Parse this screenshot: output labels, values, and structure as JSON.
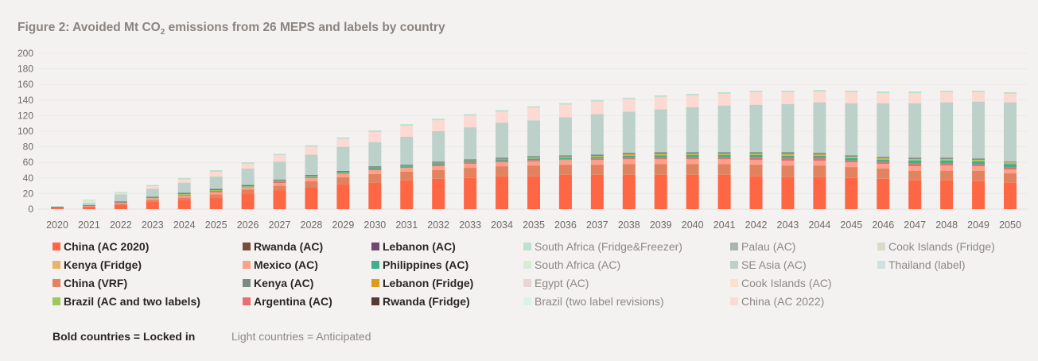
{
  "chart_data": {
    "type": "bar",
    "stacked": true,
    "title": "Figure 2: Avoided Mt CO",
    "title_sub": "2",
    "title_rest": " emissions from 26 MEPS and labels by country",
    "ylim": [
      0,
      200
    ],
    "yticks": [
      0,
      20,
      40,
      60,
      80,
      100,
      120,
      140,
      160,
      180,
      200
    ],
    "grid": true,
    "legend_placement": "bottom",
    "categories": [
      "2020",
      "2021",
      "2022",
      "2023",
      "2024",
      "2025",
      "2026",
      "2027",
      "2028",
      "2029",
      "2030",
      "2031",
      "2032",
      "2033",
      "2034",
      "2035",
      "2036",
      "2037",
      "2038",
      "2039",
      "2040",
      "2041",
      "2042",
      "2043",
      "2044",
      "2045",
      "2046",
      "2047",
      "2048",
      "2049",
      "2050"
    ],
    "series": [
      {
        "name": "China (AC 2020)",
        "color": "#ff6644",
        "status": "locked",
        "values": [
          1,
          3,
          6,
          10,
          12,
          15,
          20,
          24,
          28,
          32,
          34,
          37,
          39,
          40,
          42,
          42,
          44,
          44,
          44,
          44,
          44,
          44,
          42,
          41,
          41,
          40,
          39,
          37,
          37,
          36,
          34
        ]
      },
      {
        "name": "China (VRF)",
        "color": "#e3825f",
        "status": "locked",
        "values": [
          0,
          0.5,
          1,
          2,
          3,
          4,
          5,
          6,
          8,
          9,
          11,
          11,
          11,
          13,
          13,
          14,
          13,
          13,
          14,
          14,
          14,
          14,
          15,
          15,
          15,
          14,
          13,
          12,
          12,
          13,
          12
        ]
      },
      {
        "name": "Mexico (AC)",
        "color": "#ffa08a",
        "status": "locked",
        "values": [
          0,
          0.5,
          1,
          1.5,
          2,
          2.5,
          3,
          3.5,
          4,
          4.5,
          5,
          5,
          5,
          5,
          5,
          5,
          6,
          6,
          6,
          6,
          6,
          6,
          6,
          6,
          6,
          6,
          6,
          6,
          7,
          6,
          5
        ]
      },
      {
        "name": "Argentina (AC)",
        "color": "#e87070",
        "status": "locked",
        "values": [
          1,
          0,
          0.5,
          0.5,
          1,
          1.5,
          0.5,
          1.5,
          1,
          0.5,
          1.5,
          0.5,
          2,
          2,
          2,
          2,
          1,
          2,
          2,
          2,
          2.5,
          2.5,
          3.5,
          3.5,
          3.5,
          2.5,
          2.5,
          3.5,
          2.5,
          2.5,
          3
        ]
      },
      {
        "name": "Philippines (AC)",
        "color": "#3fae8c",
        "status": "locked",
        "values": [
          0,
          0,
          0,
          0,
          0.5,
          0.5,
          0.5,
          1,
          1,
          1,
          1.5,
          1.5,
          2,
          2,
          2,
          2,
          2,
          2,
          2.5,
          3,
          3,
          3,
          3,
          3,
          3,
          3,
          3,
          4,
          4,
          4,
          4
        ]
      },
      {
        "name": "Brazil (AC and two labels)",
        "color": "#9bc95b",
        "status": "locked",
        "values": [
          0,
          0,
          0,
          0.5,
          1,
          1,
          0.5,
          0.5,
          0.5,
          0.5,
          0.5,
          0.5,
          0.5,
          0.5,
          0.5,
          1,
          1,
          1,
          1,
          1,
          1,
          1,
          1,
          1.5,
          1,
          1.5,
          1.5,
          1.5,
          1.5,
          1.5,
          1.5
        ]
      },
      {
        "name": "Lebanon (Fridge)",
        "color": "#e09a1a",
        "status": "locked",
        "values": [
          0,
          0,
          0,
          0,
          0,
          0,
          0,
          0,
          0,
          0,
          0,
          0,
          0,
          0,
          0,
          0.5,
          0.5,
          0.5,
          1,
          1.5,
          1,
          1,
          1,
          1.5,
          1,
          0.5,
          0.5,
          0.5,
          0.5,
          0.5,
          0.5
        ]
      },
      {
        "name": "Kenya (AC)",
        "color": "#6f7f7a",
        "status": "locked",
        "values": [
          1,
          1,
          1.5,
          1.5,
          1.5,
          1.5,
          1.5,
          1.5,
          1.5,
          1.5,
          1.5,
          1.5,
          1.5,
          1.5,
          1.5,
          1.5,
          1.5,
          1.5,
          1.5,
          1.5,
          1.5,
          1.5,
          1.5,
          1.5,
          1.5,
          1.5,
          1.5,
          1.5,
          1.5,
          1.5,
          1
        ]
      },
      {
        "name": "SE Asia (AC)",
        "color": "#bcd1ca",
        "status": "anticipated",
        "values": [
          0.5,
          3,
          9,
          10,
          13,
          16,
          21,
          23,
          26,
          31,
          31,
          36,
          39,
          41,
          45,
          46,
          49,
          52,
          53,
          55,
          58,
          60,
          61,
          62,
          65,
          67,
          69,
          70,
          71,
          73,
          76
        ]
      },
      {
        "name": "China (AC 2022)",
        "color": "#fcdad3",
        "status": "anticipated",
        "values": [
          0,
          0,
          1.5,
          3.5,
          4,
          6,
          6,
          8,
          10,
          10,
          13,
          14,
          14,
          15,
          14,
          16,
          16,
          16,
          16,
          16,
          15,
          15,
          16,
          15,
          14,
          14,
          13,
          13,
          13,
          12,
          11
        ]
      },
      {
        "name": "South Africa (AC)",
        "color": "#d5ecd5",
        "status": "anticipated",
        "values": [
          0,
          3,
          0,
          0,
          0,
          0,
          0,
          0,
          0,
          0,
          0,
          0,
          0,
          0,
          0,
          0,
          0,
          0,
          0,
          0,
          0,
          0,
          0,
          0,
          0,
          0,
          0,
          0,
          0,
          0,
          0
        ]
      },
      {
        "name": "South Africa (Fridge&Freezer)",
        "color": "#bfe0cc",
        "status": "anticipated",
        "values": [
          0,
          1,
          1.5,
          1.5,
          2,
          2,
          2,
          2,
          2,
          2,
          2,
          2,
          2,
          2,
          2,
          2,
          2,
          2,
          2,
          2,
          2,
          2,
          2,
          2,
          2,
          2,
          2,
          2,
          2,
          2,
          2
        ]
      }
    ],
    "legend": [
      {
        "name": "China (AC 2020)",
        "color": "#ff6644",
        "status": "locked"
      },
      {
        "name": "Kenya (Fridge)",
        "color": "#e8b36a",
        "status": "locked"
      },
      {
        "name": "China (VRF)",
        "color": "#e3825f",
        "status": "locked"
      },
      {
        "name": "Brazil (AC and two labels)",
        "color": "#9bc95b",
        "status": "locked"
      },
      {
        "name": "Rwanda (AC)",
        "color": "#7a4a3a",
        "status": "locked"
      },
      {
        "name": "Mexico (AC)",
        "color": "#ffa08a",
        "status": "locked"
      },
      {
        "name": "Kenya (AC)",
        "color": "#7c8a86",
        "status": "locked"
      },
      {
        "name": "Argentina (AC)",
        "color": "#e87070",
        "status": "locked"
      },
      {
        "name": "Lebanon (AC)",
        "color": "#6e4a6e",
        "status": "locked"
      },
      {
        "name": "Philippines (AC)",
        "color": "#3fae8c",
        "status": "locked"
      },
      {
        "name": "Lebanon (Fridge)",
        "color": "#e09a1a",
        "status": "locked"
      },
      {
        "name": "Rwanda (Fridge)",
        "color": "#5a3a30",
        "status": "locked"
      },
      {
        "name": "South Africa (Fridge&Freezer)",
        "color": "#bfe0cc",
        "status": "anticipated"
      },
      {
        "name": "South Africa (AC)",
        "color": "#d5ecd5",
        "status": "anticipated"
      },
      {
        "name": "Egypt (AC)",
        "color": "#e6d6d4",
        "status": "anticipated"
      },
      {
        "name": "Brazil (two label revisions)",
        "color": "#d9f3e8",
        "status": "anticipated"
      },
      {
        "name": "Palau (AC)",
        "color": "#aab5b2",
        "status": "anticipated"
      },
      {
        "name": "SE Asia (AC)",
        "color": "#bcd1ca",
        "status": "anticipated"
      },
      {
        "name": "Cook Islands (AC)",
        "color": "#fde0cc",
        "status": "anticipated"
      },
      {
        "name": "China (AC 2022)",
        "color": "#fcdad3",
        "status": "anticipated"
      },
      {
        "name": "Cook Islands (Fridge)",
        "color": "#d9dcc8",
        "status": "anticipated"
      },
      {
        "name": "Thailand (label)",
        "color": "#cfe2e3",
        "status": "anticipated"
      }
    ],
    "notes": {
      "locked": "Bold countries = Locked in",
      "anticipated": "Light countries = Anticipated"
    }
  }
}
